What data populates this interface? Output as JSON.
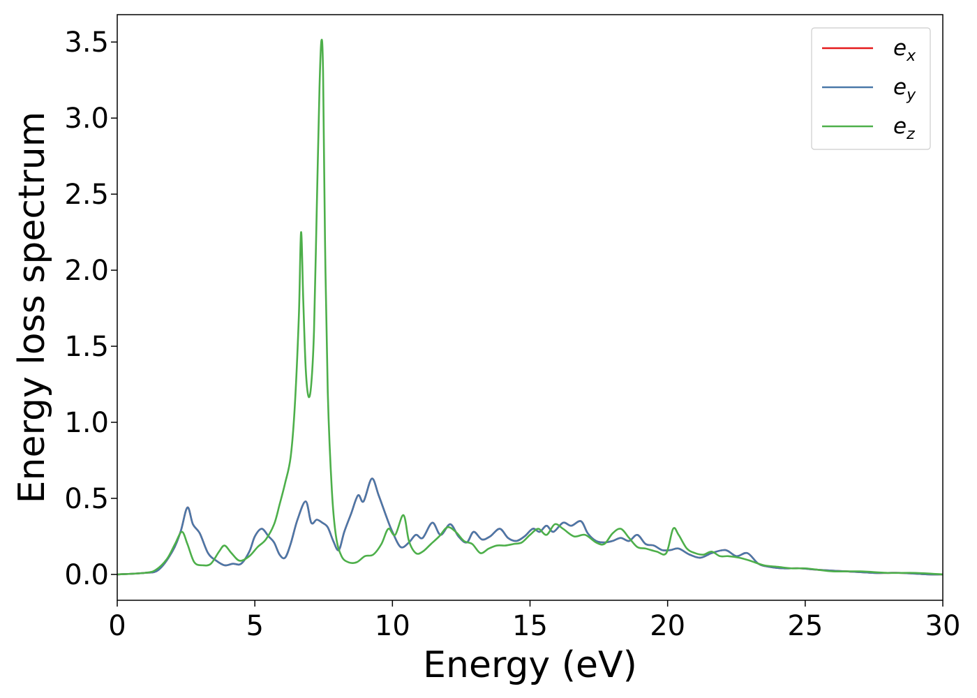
{
  "chart_data": {
    "type": "line",
    "title": "",
    "xlabel": "Energy (eV)",
    "ylabel": "Energy loss spectrum",
    "xlim": [
      0,
      30
    ],
    "ylim": [
      -0.17,
      3.68
    ],
    "x_ticks": [
      0,
      5,
      10,
      15,
      20,
      25,
      30
    ],
    "x_tick_labels": [
      "0",
      "5",
      "10",
      "15",
      "20",
      "25",
      "30"
    ],
    "y_ticks": [
      0.0,
      0.5,
      1.0,
      1.5,
      2.0,
      2.5,
      3.0,
      3.5
    ],
    "y_tick_labels": [
      "0.0",
      "0.5",
      "1.0",
      "1.5",
      "2.0",
      "2.5",
      "3.0",
      "3.5"
    ],
    "grid": false,
    "legend_position": "top-right",
    "series": [
      {
        "name": "e",
        "subscript": "x",
        "color": "#e41a1c",
        "x": [
          0,
          1,
          1.5,
          2.0,
          2.3,
          2.55,
          2.75,
          3.0,
          3.3,
          3.6,
          3.9,
          4.2,
          4.5,
          4.8,
          5.0,
          5.25,
          5.5,
          5.7,
          5.9,
          6.1,
          6.3,
          6.55,
          6.85,
          7.05,
          7.25,
          7.45,
          7.65,
          7.85,
          8.05,
          8.25,
          8.5,
          8.75,
          8.95,
          9.25,
          9.5,
          9.8,
          10.0,
          10.3,
          10.6,
          10.85,
          11.1,
          11.45,
          11.75,
          12.1,
          12.4,
          12.7,
          12.95,
          13.25,
          13.55,
          13.9,
          14.2,
          14.5,
          14.8,
          15.1,
          15.35,
          15.6,
          15.85,
          16.2,
          16.5,
          16.85,
          17.1,
          17.4,
          17.7,
          18.0,
          18.3,
          18.6,
          18.9,
          19.2,
          19.5,
          19.8,
          20.1,
          20.4,
          20.8,
          21.2,
          21.6,
          22.1,
          22.5,
          22.9,
          23.3,
          23.7,
          24.2,
          24.8,
          25.5,
          26.5,
          27.5,
          28.0,
          28.5,
          29.5,
          30
        ],
        "y": [
          0,
          0.01,
          0.03,
          0.15,
          0.28,
          0.44,
          0.33,
          0.27,
          0.14,
          0.09,
          0.06,
          0.07,
          0.07,
          0.15,
          0.25,
          0.3,
          0.25,
          0.21,
          0.13,
          0.11,
          0.2,
          0.36,
          0.48,
          0.34,
          0.36,
          0.34,
          0.31,
          0.22,
          0.16,
          0.28,
          0.4,
          0.52,
          0.48,
          0.63,
          0.52,
          0.37,
          0.28,
          0.18,
          0.21,
          0.26,
          0.24,
          0.34,
          0.26,
          0.33,
          0.25,
          0.21,
          0.28,
          0.23,
          0.25,
          0.3,
          0.24,
          0.22,
          0.25,
          0.3,
          0.28,
          0.32,
          0.28,
          0.34,
          0.32,
          0.35,
          0.27,
          0.22,
          0.21,
          0.22,
          0.24,
          0.22,
          0.26,
          0.2,
          0.19,
          0.16,
          0.16,
          0.17,
          0.13,
          0.11,
          0.14,
          0.16,
          0.12,
          0.14,
          0.07,
          0.05,
          0.04,
          0.04,
          0.03,
          0.02,
          0.01,
          0.01,
          0.01,
          0.0,
          0.0
        ]
      },
      {
        "name": "e",
        "subscript": "y",
        "color": "#4a78a8",
        "x": [
          0,
          1,
          1.5,
          2.0,
          2.3,
          2.55,
          2.75,
          3.0,
          3.3,
          3.6,
          3.9,
          4.2,
          4.5,
          4.8,
          5.0,
          5.25,
          5.5,
          5.7,
          5.9,
          6.1,
          6.3,
          6.55,
          6.85,
          7.05,
          7.25,
          7.45,
          7.65,
          7.85,
          8.05,
          8.25,
          8.5,
          8.75,
          8.95,
          9.25,
          9.5,
          9.8,
          10.0,
          10.3,
          10.6,
          10.85,
          11.1,
          11.45,
          11.75,
          12.1,
          12.4,
          12.7,
          12.95,
          13.25,
          13.55,
          13.9,
          14.2,
          14.5,
          14.8,
          15.1,
          15.35,
          15.6,
          15.85,
          16.2,
          16.5,
          16.85,
          17.1,
          17.4,
          17.7,
          18.0,
          18.3,
          18.6,
          18.9,
          19.2,
          19.5,
          19.8,
          20.1,
          20.4,
          20.8,
          21.2,
          21.6,
          22.1,
          22.5,
          22.9,
          23.3,
          23.7,
          24.2,
          24.8,
          25.5,
          26.5,
          27.5,
          28.0,
          28.5,
          29.5,
          30
        ],
        "y": [
          0,
          0.01,
          0.03,
          0.15,
          0.28,
          0.44,
          0.33,
          0.27,
          0.14,
          0.09,
          0.06,
          0.07,
          0.07,
          0.15,
          0.25,
          0.3,
          0.25,
          0.21,
          0.13,
          0.11,
          0.2,
          0.36,
          0.48,
          0.34,
          0.36,
          0.34,
          0.31,
          0.22,
          0.16,
          0.28,
          0.4,
          0.52,
          0.48,
          0.63,
          0.52,
          0.37,
          0.28,
          0.18,
          0.21,
          0.26,
          0.24,
          0.34,
          0.26,
          0.33,
          0.25,
          0.21,
          0.28,
          0.23,
          0.25,
          0.3,
          0.24,
          0.22,
          0.25,
          0.3,
          0.28,
          0.32,
          0.28,
          0.34,
          0.32,
          0.35,
          0.27,
          0.22,
          0.21,
          0.22,
          0.24,
          0.22,
          0.26,
          0.2,
          0.19,
          0.16,
          0.16,
          0.17,
          0.13,
          0.11,
          0.14,
          0.16,
          0.12,
          0.14,
          0.07,
          0.05,
          0.04,
          0.04,
          0.03,
          0.02,
          0.01,
          0.01,
          0.01,
          0.0,
          0.0
        ]
      },
      {
        "name": "e",
        "subscript": "z",
        "color": "#4daf4a",
        "x": [
          0,
          1.0,
          1.4,
          1.8,
          2.1,
          2.35,
          2.55,
          2.8,
          3.1,
          3.4,
          3.7,
          3.9,
          4.15,
          4.45,
          4.8,
          5.1,
          5.4,
          5.7,
          5.9,
          6.1,
          6.3,
          6.45,
          6.6,
          6.68,
          6.76,
          6.85,
          6.95,
          7.05,
          7.15,
          7.25,
          7.35,
          7.42,
          7.48,
          7.55,
          7.65,
          7.8,
          7.95,
          8.15,
          8.4,
          8.7,
          9.0,
          9.3,
          9.6,
          9.85,
          10.1,
          10.4,
          10.6,
          10.85,
          11.1,
          11.4,
          11.7,
          12.0,
          12.3,
          12.6,
          12.9,
          13.2,
          13.5,
          13.8,
          14.1,
          14.4,
          14.7,
          15.0,
          15.3,
          15.6,
          15.9,
          16.2,
          16.6,
          17.0,
          17.4,
          17.7,
          18.0,
          18.3,
          18.6,
          18.9,
          19.2,
          19.6,
          19.95,
          20.2,
          20.4,
          20.7,
          21.0,
          21.3,
          21.6,
          21.9,
          22.2,
          22.6,
          23.0,
          23.5,
          24.0,
          24.5,
          25.0,
          25.5,
          26.0,
          27.0,
          28.0,
          29.0,
          30
        ],
        "y": [
          0,
          0.01,
          0.03,
          0.1,
          0.2,
          0.28,
          0.2,
          0.08,
          0.06,
          0.07,
          0.15,
          0.19,
          0.14,
          0.09,
          0.12,
          0.18,
          0.23,
          0.33,
          0.46,
          0.6,
          0.77,
          1.1,
          1.7,
          2.25,
          1.8,
          1.35,
          1.17,
          1.25,
          1.6,
          2.4,
          3.2,
          3.51,
          3.3,
          2.2,
          1.2,
          0.55,
          0.25,
          0.12,
          0.08,
          0.08,
          0.12,
          0.13,
          0.2,
          0.3,
          0.26,
          0.39,
          0.22,
          0.14,
          0.15,
          0.2,
          0.25,
          0.31,
          0.28,
          0.22,
          0.2,
          0.14,
          0.17,
          0.19,
          0.19,
          0.2,
          0.21,
          0.26,
          0.3,
          0.26,
          0.33,
          0.3,
          0.25,
          0.26,
          0.21,
          0.2,
          0.27,
          0.3,
          0.24,
          0.18,
          0.17,
          0.15,
          0.14,
          0.3,
          0.26,
          0.17,
          0.14,
          0.13,
          0.15,
          0.12,
          0.12,
          0.11,
          0.09,
          0.06,
          0.05,
          0.04,
          0.04,
          0.03,
          0.02,
          0.02,
          0.01,
          0.01,
          0.0
        ]
      }
    ]
  }
}
